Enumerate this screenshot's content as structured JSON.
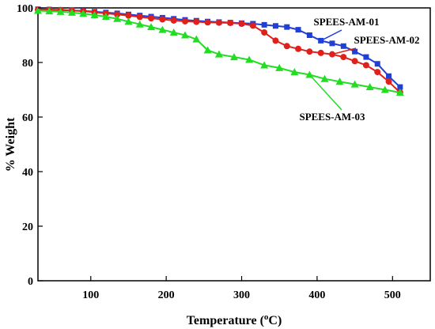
{
  "chart_data": {
    "type": "line",
    "title": "",
    "xlabel": "Temperature (",
    "xlabel_sup": "o",
    "xlabel_unit": "C)",
    "ylabel": "% Weight",
    "xlim": [
      30,
      550
    ],
    "ylim": [
      0,
      100
    ],
    "xticks": [
      100,
      200,
      300,
      400,
      500
    ],
    "yticks": [
      0,
      20,
      40,
      60,
      80,
      100
    ],
    "grid": false,
    "legend": "annotations",
    "series": [
      {
        "name": "SPEES-AM-01",
        "color": "#1f3fd6",
        "marker": "square",
        "x": [
          30,
          45,
          60,
          75,
          90,
          105,
          120,
          135,
          150,
          165,
          180,
          195,
          210,
          225,
          240,
          255,
          270,
          285,
          300,
          315,
          330,
          345,
          360,
          375,
          390,
          405,
          420,
          435,
          450,
          465,
          480,
          495,
          510
        ],
        "y": [
          99.5,
          99.4,
          99.3,
          99.1,
          98.9,
          98.6,
          98.3,
          98.0,
          97.6,
          97.2,
          96.8,
          96.4,
          96.0,
          95.6,
          95.3,
          95.0,
          94.8,
          94.6,
          94.4,
          94.2,
          93.8,
          93.4,
          93.0,
          92.0,
          90.0,
          88.0,
          87.0,
          86.0,
          84.0,
          82.0,
          79.5,
          75.0,
          71.0
        ]
      },
      {
        "name": "SPEES-AM-02",
        "color": "#e0201a",
        "marker": "circle",
        "x": [
          30,
          45,
          60,
          75,
          90,
          105,
          120,
          135,
          150,
          165,
          180,
          195,
          210,
          225,
          240,
          255,
          270,
          285,
          300,
          315,
          330,
          345,
          360,
          375,
          390,
          405,
          420,
          435,
          450,
          465,
          480,
          495,
          510
        ],
        "y": [
          99.4,
          99.3,
          99.2,
          99.0,
          98.8,
          98.4,
          98.0,
          97.6,
          97.2,
          96.7,
          96.2,
          95.8,
          95.4,
          95.1,
          94.9,
          94.7,
          94.6,
          94.5,
          94.2,
          93.5,
          91.0,
          88.0,
          86.0,
          85.0,
          84.0,
          83.5,
          83.0,
          82.0,
          80.5,
          79.0,
          76.5,
          73.0,
          69.0
        ]
      },
      {
        "name": "SPEES-AM-03",
        "color": "#22dd22",
        "marker": "triangle",
        "x": [
          30,
          45,
          60,
          75,
          90,
          105,
          120,
          135,
          150,
          165,
          180,
          195,
          210,
          225,
          240,
          255,
          270,
          290,
          310,
          330,
          350,
          370,
          390,
          410,
          430,
          450,
          470,
          490,
          510
        ],
        "y": [
          99.0,
          98.8,
          98.6,
          98.3,
          97.9,
          97.4,
          96.8,
          96.0,
          95.0,
          94.0,
          93.0,
          92.0,
          91.0,
          90.0,
          88.5,
          84.5,
          83.0,
          82.0,
          81.0,
          79.0,
          78.0,
          76.5,
          75.5,
          74.0,
          73.0,
          72.0,
          71.0,
          70.0,
          69.0
        ]
      }
    ],
    "annotations": [
      {
        "text": "SPEES-AM-01",
        "series": 0
      },
      {
        "text": "SPEES-AM-02",
        "series": 1
      },
      {
        "text": "SPEES-AM-03",
        "series": 2
      }
    ]
  }
}
